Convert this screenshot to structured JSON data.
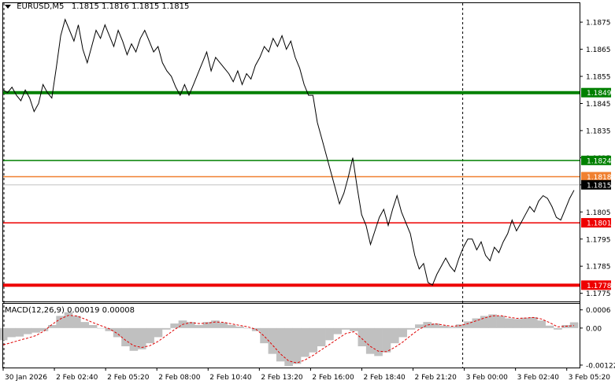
{
  "header": {
    "symbol": "EURUSD,M5",
    "ohlc": "1.1815 1.1816 1.1815 1.1815"
  },
  "macd_header": {
    "label": "MACD(12,26,9)",
    "values": "0.00019 0.00008"
  },
  "colors": {
    "price_line": "#000000",
    "green_level": "#008000",
    "red_level": "#ee0000",
    "orange_level": "#f08030",
    "current_price": "#c0c0c0",
    "macd_histogram": "#c0c0c0",
    "signal_line": "#e00000"
  },
  "chart_data": [
    {
      "type": "line",
      "title": "EURUSD,M5",
      "y_ticks": [
        "1.1875",
        "1.1865",
        "1.1855",
        "1.1845",
        "1.1835",
        "1.1825",
        "1.1815",
        "1.1805",
        "1.1795",
        "1.1785",
        "1.1775"
      ],
      "ylim": [
        1.1772,
        1.1882
      ],
      "x_ticks": [
        "30 Jan 2026",
        "2 Feb 02:40",
        "2 Feb 05:20",
        "2 Feb 08:00",
        "2 Feb 10:40",
        "2 Feb 13:20",
        "2 Feb 16:00",
        "2 Feb 18:40",
        "2 Feb 21:20",
        "3 Feb 00:00",
        "3 Feb 02:40",
        "3 Feb 05:20"
      ],
      "levels": [
        {
          "label": "1.1849",
          "value": 1.1849,
          "color": "green_level",
          "bold": true
        },
        {
          "label": "1.1824",
          "value": 1.1824,
          "color": "green_level",
          "bold": false
        },
        {
          "label": "1.1818",
          "value": 1.1818,
          "color": "orange_level",
          "bold": false
        },
        {
          "label": "1.1815",
          "value": 1.1815,
          "color": "current_price",
          "bold": false,
          "current": true
        },
        {
          "label": "1.1801",
          "value": 1.1801,
          "color": "red_level",
          "bold": false
        },
        {
          "label": "1.1778",
          "value": 1.1778,
          "color": "red_level",
          "bold": true
        }
      ],
      "series": [
        {
          "values": [
            1.185,
            1.1849,
            1.1851,
            1.1848,
            1.1846,
            1.185,
            1.1847,
            1.1842,
            1.1845,
            1.1852,
            1.1849,
            1.1847,
            1.1858,
            1.187,
            1.1876,
            1.1872,
            1.1868,
            1.1874,
            1.1865,
            1.186,
            1.1866,
            1.1872,
            1.1869,
            1.1874,
            1.187,
            1.1866,
            1.1872,
            1.1868,
            1.1863,
            1.1867,
            1.1864,
            1.1869,
            1.1872,
            1.1868,
            1.1864,
            1.1866,
            1.186,
            1.1857,
            1.1855,
            1.1851,
            1.1848,
            1.1852,
            1.1848,
            1.1852,
            1.1856,
            1.186,
            1.1864,
            1.1857,
            1.1862,
            1.186,
            1.1858,
            1.1856,
            1.1853,
            1.1857,
            1.1852,
            1.1856,
            1.1854,
            1.1859,
            1.1862,
            1.1866,
            1.1864,
            1.1869,
            1.1866,
            1.187,
            1.1865,
            1.1868,
            1.1862,
            1.1858,
            1.1852,
            1.1848,
            1.1848,
            1.1838,
            1.1832,
            1.1826,
            1.182,
            1.1814,
            1.1808,
            1.1812,
            1.1818,
            1.1825,
            1.1814,
            1.1804,
            1.18,
            1.1793,
            1.1798,
            1.1803,
            1.1806,
            1.18,
            1.1806,
            1.1811,
            1.1805,
            1.1801,
            1.1797,
            1.1789,
            1.1784,
            1.1786,
            1.1779,
            1.1778,
            1.1782,
            1.1785,
            1.1788,
            1.1785,
            1.1783,
            1.1788,
            1.1792,
            1.1795,
            1.1795,
            1.1791,
            1.1794,
            1.1789,
            1.1787,
            1.1792,
            1.179,
            1.1794,
            1.1797,
            1.1802,
            1.1798,
            1.1801,
            1.1804,
            1.1807,
            1.1805,
            1.1809,
            1.1811,
            1.181,
            1.1807,
            1.1803,
            1.1802,
            1.1806,
            1.181,
            1.1813
          ]
        }
      ]
    },
    {
      "type": "bar",
      "title": "MACD(12,26,9)",
      "y_ticks": [
        "0.0006",
        "0.00",
        "-0.00122"
      ],
      "ylim": [
        -0.0013,
        0.0008
      ],
      "series": [
        {
          "name": "MACD",
          "values": [
            -0.0004,
            -0.0003,
            -0.00028,
            -0.0002,
            -0.00015,
            -0.0001,
            0.0001,
            0.0004,
            0.00052,
            0.0004,
            0.0002,
            0.0001,
            0.0,
            -0.0001,
            -0.0003,
            -0.0006,
            -0.00075,
            -0.0007,
            -0.0005,
            -0.0003,
            -5e-05,
            0.00015,
            0.00025,
            0.0002,
            0.0001,
            0.0002,
            0.00025,
            0.00018,
            0.0001,
            5e-05,
            0.0,
            -0.0001,
            -0.0005,
            -0.00085,
            -0.0011,
            -0.00125,
            -0.00118,
            -0.00095,
            -0.0008,
            -0.0006,
            -0.0004,
            -0.0002,
            -5e-05,
            -0.0001,
            -0.0006,
            -0.00085,
            -0.00092,
            -0.0008,
            -0.0005,
            -0.0003,
            -5e-05,
            0.00012,
            0.0002,
            0.00015,
            8e-05,
            4e-05,
            0.00012,
            0.00022,
            0.00032,
            0.0004,
            0.00045,
            0.0004,
            0.00032,
            0.0003,
            0.00034,
            0.00036,
            0.00025,
            8e-05,
            -5e-05,
            0.0001,
            0.00019
          ]
        },
        {
          "name": "Signal",
          "values": [
            -0.00055,
            -0.00048,
            -0.0004,
            -0.00033,
            -0.00025,
            -0.0001,
            0.00012,
            0.0003,
            0.00042,
            0.0004,
            0.0003,
            0.00018,
            8e-05,
            -2e-05,
            -0.00018,
            -0.0004,
            -0.00058,
            -0.00064,
            -0.00058,
            -0.00044,
            -0.00025,
            -5e-05,
            0.00012,
            0.00018,
            0.00015,
            0.00016,
            0.0002,
            0.00019,
            0.00014,
            9e-05,
            4e-05,
            -4e-05,
            -0.00026,
            -0.00055,
            -0.00085,
            -0.00108,
            -0.00115,
            -0.00105,
            -0.0009,
            -0.00072,
            -0.00054,
            -0.00036,
            -0.00018,
            -0.00012,
            -0.00035,
            -0.0006,
            -0.00076,
            -0.00078,
            -0.00064,
            -0.00046,
            -0.00024,
            -4e-05,
            0.0001,
            0.00014,
            0.0001,
            6e-05,
            8e-05,
            0.00015,
            0.00024,
            0.00033,
            0.0004,
            0.00041,
            0.00036,
            0.00032,
            0.00033,
            0.00035,
            0.0003,
            0.00018,
            4e-05,
            6e-05,
            8e-05
          ]
        }
      ]
    }
  ]
}
